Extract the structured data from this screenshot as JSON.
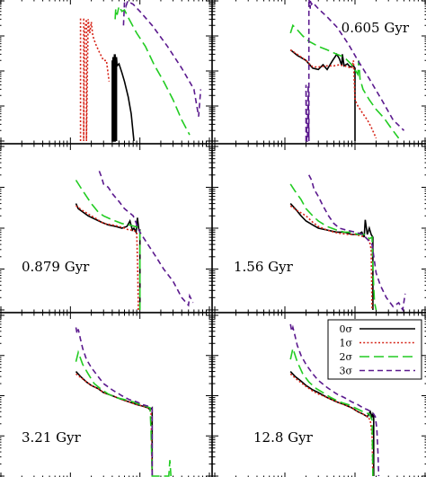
{
  "chart_data": [
    {
      "type": "line",
      "panel_label": "",
      "xscale": "log",
      "yscale": "log",
      "xlim": [
        1,
        1000
      ],
      "ylim": [
        0.0001,
        1
      ],
      "series": [
        {
          "name": "0σ",
          "color": "#000000",
          "dash": "solid",
          "x": [
            40,
            40,
            40,
            41,
            41,
            42,
            42,
            43,
            43,
            44,
            44,
            45,
            45,
            46,
            46,
            47,
            50,
            55,
            60,
            68,
            75,
            82
          ],
          "y": [
            0.0001,
            0.02,
            0.0001,
            0.0001,
            0.025,
            0.0001,
            0.0001,
            0.03,
            0.0001,
            0.0001,
            0.03,
            0.0001,
            0.02,
            0.0001,
            0.025,
            0.014,
            0.016,
            0.009,
            0.005,
            0.0018,
            0.0006,
            0.0001
          ]
        },
        {
          "name": "1σ",
          "color": "#d62418",
          "dash": "dotted",
          "x": [
            14,
            14,
            14.5,
            15.5,
            15.5,
            16,
            17,
            17,
            18,
            19,
            20,
            21,
            23,
            26,
            30,
            33,
            36
          ],
          "y": [
            0.0001,
            0.3,
            0.3,
            0.3,
            0.0001,
            0.15,
            0.3,
            0.0001,
            0.3,
            0.12,
            0.25,
            0.1,
            0.06,
            0.035,
            0.02,
            0.02,
            0.005
          ]
        },
        {
          "name": "2σ",
          "color": "#22cc22",
          "dash": "longdash",
          "x": [
            44,
            45,
            47,
            50,
            55,
            60,
            70,
            90,
            120,
            160,
            220,
            300,
            400,
            520
          ],
          "y": [
            0.3,
            0.6,
            0.4,
            0.7,
            0.5,
            0.55,
            0.3,
            0.12,
            0.05,
            0.015,
            0.005,
            0.0015,
            0.0004,
            0.00015
          ]
        },
        {
          "name": "3σ",
          "color": "#5b1a8e",
          "dash": "dashed",
          "x": [
            58,
            60,
            63,
            67,
            72,
            80,
            100,
            150,
            250,
            400,
            600,
            700,
            750
          ],
          "y": [
            0.2,
            0.9,
            0.7,
            1.0,
            0.9,
            0.8,
            0.5,
            0.2,
            0.05,
            0.012,
            0.003,
            0.0005,
            0.003
          ]
        }
      ]
    },
    {
      "type": "line",
      "panel_label": "0.605 Gyr",
      "xscale": "log",
      "yscale": "log",
      "xlim": [
        1,
        1000
      ],
      "ylim": [
        0.0001,
        1
      ],
      "series": [
        {
          "name": "0σ",
          "color": "#000000",
          "dash": "solid",
          "x": [
            12,
            15,
            20,
            25,
            30,
            35,
            40,
            48,
            55,
            60,
            65,
            66,
            70,
            78,
            85,
            95,
            100,
            100
          ],
          "y": [
            0.04,
            0.028,
            0.02,
            0.012,
            0.011,
            0.015,
            0.011,
            0.02,
            0.03,
            0.022,
            0.014,
            0.03,
            0.014,
            0.016,
            0.013,
            0.014,
            0.012,
            0.0001
          ]
        },
        {
          "name": "1σ",
          "color": "#d62418",
          "dash": "dotted",
          "x": [
            12,
            15,
            20,
            25,
            30,
            40,
            50,
            60,
            70,
            80,
            90,
            95,
            100,
            110,
            130,
            150,
            170,
            200
          ],
          "y": [
            0.04,
            0.03,
            0.02,
            0.013,
            0.013,
            0.014,
            0.014,
            0.015,
            0.014,
            0.013,
            0.012,
            0.02,
            0.0015,
            0.001,
            0.0006,
            0.0004,
            0.00025,
            0.00012
          ]
        },
        {
          "name": "2σ",
          "color": "#22cc22",
          "dash": "longdash",
          "x": [
            12,
            13,
            15,
            18,
            22,
            30,
            40,
            55,
            70,
            90,
            110,
            113,
            118,
            130,
            160,
            200,
            260,
            320,
            420
          ],
          "y": [
            0.12,
            0.2,
            0.15,
            0.1,
            0.07,
            0.05,
            0.04,
            0.03,
            0.025,
            0.015,
            0.008,
            0.02,
            0.006,
            0.003,
            0.0015,
            0.0008,
            0.00045,
            0.00025,
            0.00012
          ]
        },
        {
          "name": "3σ",
          "color": "#5b1a8e",
          "dash": "dashed",
          "x": [
            20,
            20,
            20.5,
            21,
            21.5,
            22,
            22,
            23,
            23,
            24,
            25,
            30,
            40,
            55,
            80,
            110,
            160,
            240,
            350,
            500
          ],
          "y": [
            0.0001,
            0.004,
            0.0001,
            0.0001,
            0.004,
            0.0001,
            1.2,
            0.6,
            1.0,
            0.8,
            0.9,
            0.6,
            0.35,
            0.18,
            0.06,
            0.02,
            0.006,
            0.0015,
            0.0004,
            0.0002
          ]
        }
      ]
    },
    {
      "type": "line",
      "panel_label": "0.879 Gyr",
      "xscale": "log",
      "yscale": "log",
      "xlim": [
        1,
        1000
      ],
      "ylim": [
        0.0001,
        1
      ],
      "series": [
        {
          "name": "0σ",
          "color": "#000000",
          "dash": "solid",
          "x": [
            12,
            13,
            15,
            18,
            22,
            28,
            35,
            45,
            55,
            65,
            72,
            78,
            82,
            88,
            92,
            97,
            100,
            100
          ],
          "y": [
            0.04,
            0.03,
            0.025,
            0.02,
            0.017,
            0.014,
            0.012,
            0.011,
            0.01,
            0.011,
            0.015,
            0.009,
            0.01,
            0.008,
            0.018,
            0.009,
            0.009,
            0.0001
          ]
        },
        {
          "name": "1σ",
          "color": "#d62418",
          "dash": "dotted",
          "x": [
            12,
            15,
            20,
            25,
            30,
            40,
            50,
            60,
            70,
            80,
            90,
            93,
            95
          ],
          "y": [
            0.035,
            0.027,
            0.02,
            0.016,
            0.013,
            0.012,
            0.011,
            0.01,
            0.009,
            0.009,
            0.008,
            0.001,
            0.0001
          ]
        },
        {
          "name": "2σ",
          "color": "#22cc22",
          "dash": "longdash",
          "x": [
            12,
            14,
            17,
            20,
            25,
            30,
            40,
            55,
            70,
            85,
            100,
            100
          ],
          "y": [
            0.15,
            0.1,
            0.06,
            0.04,
            0.025,
            0.02,
            0.016,
            0.013,
            0.012,
            0.011,
            0.01,
            0.0001
          ]
        },
        {
          "name": "3σ",
          "color": "#5b1a8e",
          "dash": "dashed",
          "x": [
            26,
            28,
            30,
            35,
            40,
            50,
            60,
            80,
            100,
            130,
            170,
            220,
            300,
            400,
            500,
            520,
            580
          ],
          "y": [
            0.25,
            0.18,
            0.12,
            0.1,
            0.07,
            0.045,
            0.03,
            0.02,
            0.008,
            0.004,
            0.002,
            0.001,
            0.0005,
            0.0002,
            0.00013,
            0.00022,
            0.00015
          ]
        }
      ]
    },
    {
      "type": "line",
      "panel_label": "1.56 Gyr",
      "xscale": "log",
      "yscale": "log",
      "xlim": [
        1,
        1000
      ],
      "ylim": [
        0.0001,
        1
      ],
      "series": [
        {
          "name": "0σ",
          "color": "#000000",
          "dash": "solid",
          "x": [
            12,
            14,
            17,
            20,
            25,
            30,
            40,
            55,
            70,
            90,
            110,
            125,
            135,
            140,
            150,
            160,
            170,
            180,
            180
          ],
          "y": [
            0.04,
            0.03,
            0.02,
            0.015,
            0.012,
            0.01,
            0.009,
            0.008,
            0.008,
            0.007,
            0.007,
            0.008,
            0.006,
            0.016,
            0.007,
            0.01,
            0.007,
            0.006,
            0.0001
          ]
        },
        {
          "name": "1σ",
          "color": "#d62418",
          "dash": "dotted",
          "x": [
            12,
            15,
            20,
            25,
            30,
            40,
            50,
            60,
            80,
            100,
            120,
            140,
            160,
            170,
            175
          ],
          "y": [
            0.035,
            0.027,
            0.02,
            0.014,
            0.011,
            0.009,
            0.008,
            0.0075,
            0.007,
            0.007,
            0.0065,
            0.006,
            0.005,
            0.003,
            0.0001
          ]
        },
        {
          "name": "2σ",
          "color": "#22cc22",
          "dash": "longdash",
          "x": [
            12,
            14,
            17,
            20,
            25,
            30,
            40,
            55,
            70,
            90,
            110,
            140,
            160,
            175,
            180,
            190,
            200
          ],
          "y": [
            0.12,
            0.08,
            0.05,
            0.03,
            0.02,
            0.015,
            0.011,
            0.009,
            0.008,
            0.008,
            0.007,
            0.007,
            0.0055,
            0.006,
            0.001,
            0.00015,
            0.0001
          ]
        },
        {
          "name": "3σ",
          "color": "#5b1a8e",
          "dash": "dashed",
          "x": [
            22,
            24,
            26,
            30,
            35,
            42,
            50,
            60,
            75,
            100,
            130,
            175,
            200,
            230,
            280,
            350,
            420,
            480,
            520
          ],
          "y": [
            0.2,
            0.15,
            0.09,
            0.06,
            0.035,
            0.02,
            0.013,
            0.01,
            0.009,
            0.008,
            0.007,
            0.004,
            0.0008,
            0.0004,
            0.0002,
            0.00012,
            0.00015,
            0.0001,
            0.00025
          ]
        }
      ]
    },
    {
      "type": "line",
      "panel_label": "3.21 Gyr",
      "xscale": "log",
      "yscale": "log",
      "xlim": [
        1,
        1000
      ],
      "ylim": [
        0.0001,
        1
      ],
      "series": [
        {
          "name": "0σ",
          "color": "#000000",
          "dash": "solid",
          "x": [
            12,
            14,
            17,
            20,
            25,
            30,
            40,
            55,
            70,
            90,
            110,
            130,
            140,
            150,
            150
          ],
          "y": [
            0.04,
            0.03,
            0.022,
            0.018,
            0.015,
            0.012,
            0.01,
            0.008,
            0.007,
            0.006,
            0.0055,
            0.005,
            0.0045,
            0.005,
            0.0001
          ]
        },
        {
          "name": "1σ",
          "color": "#d62418",
          "dash": "dotted",
          "x": [
            12,
            15,
            20,
            25,
            30,
            40,
            55,
            70,
            90,
            110,
            130,
            145,
            150
          ],
          "y": [
            0.035,
            0.026,
            0.018,
            0.015,
            0.012,
            0.01,
            0.008,
            0.007,
            0.006,
            0.0055,
            0.005,
            0.004,
            0.0001
          ]
        },
        {
          "name": "2σ",
          "color": "#22cc22",
          "dash": "longdash",
          "x": [
            12,
            13,
            15,
            18,
            22,
            27,
            35,
            45,
            60,
            80,
            100,
            120,
            140,
            145,
            150,
            260,
            270,
            280
          ],
          "y": [
            0.07,
            0.12,
            0.06,
            0.035,
            0.02,
            0.015,
            0.011,
            0.009,
            0.008,
            0.007,
            0.006,
            0.0055,
            0.005,
            0.0012,
            0.0001,
            0.0001,
            0.00025,
            0.0001
          ]
        },
        {
          "name": "3σ",
          "color": "#5b1a8e",
          "dash": "dashed",
          "x": [
            12,
            12.5,
            13,
            14,
            15,
            17,
            20,
            25,
            30,
            40,
            55,
            70,
            90,
            110,
            130,
            150,
            150
          ],
          "y": [
            0.5,
            0.35,
            0.45,
            0.25,
            0.15,
            0.08,
            0.05,
            0.03,
            0.02,
            0.014,
            0.01,
            0.008,
            0.007,
            0.006,
            0.0055,
            0.005,
            0.0001
          ]
        }
      ]
    },
    {
      "type": "line",
      "panel_label": "12.8 Gyr",
      "xscale": "log",
      "yscale": "log",
      "xlim": [
        1,
        1000
      ],
      "ylim": [
        0.0001,
        1
      ],
      "series": [
        {
          "name": "0σ",
          "color": "#000000",
          "dash": "solid",
          "x": [
            12,
            14,
            17,
            20,
            25,
            30,
            40,
            55,
            70,
            90,
            110,
            130,
            150,
            165,
            175,
            180,
            185,
            185
          ],
          "y": [
            0.04,
            0.03,
            0.023,
            0.018,
            0.014,
            0.012,
            0.009,
            0.007,
            0.006,
            0.005,
            0.004,
            0.0035,
            0.003,
            0.004,
            0.003,
            0.0035,
            0.003,
            0.0001
          ]
        },
        {
          "name": "1σ",
          "color": "#d62418",
          "dash": "dotted",
          "x": [
            12,
            15,
            20,
            25,
            30,
            40,
            55,
            70,
            90,
            110,
            130,
            150,
            165,
            175,
            180
          ],
          "y": [
            0.035,
            0.025,
            0.017,
            0.013,
            0.011,
            0.009,
            0.007,
            0.006,
            0.005,
            0.004,
            0.0035,
            0.003,
            0.0025,
            0.001,
            0.0001
          ]
        },
        {
          "name": "2σ",
          "color": "#22cc22",
          "dash": "longdash",
          "x": [
            12,
            13,
            15,
            18,
            22,
            28,
            35,
            45,
            60,
            80,
            100,
            130,
            160,
            175,
            180
          ],
          "y": [
            0.08,
            0.15,
            0.07,
            0.035,
            0.022,
            0.015,
            0.012,
            0.009,
            0.007,
            0.006,
            0.005,
            0.004,
            0.0035,
            0.0025,
            0.0001
          ]
        },
        {
          "name": "3σ",
          "color": "#5b1a8e",
          "dash": "dashed",
          "x": [
            12,
            12.5,
            13,
            14,
            15,
            17,
            20,
            25,
            30,
            40,
            55,
            70,
            90,
            110,
            130,
            150,
            170,
            185,
            195,
            205,
            212,
            218
          ],
          "y": [
            0.6,
            0.4,
            0.5,
            0.3,
            0.18,
            0.1,
            0.06,
            0.035,
            0.024,
            0.016,
            0.011,
            0.009,
            0.007,
            0.006,
            0.005,
            0.0045,
            0.004,
            0.0035,
            0.003,
            0.0015,
            0.0004,
            0.0001
          ]
        }
      ]
    }
  ],
  "legend": {
    "entries": [
      {
        "label": "0σ",
        "color": "#000000",
        "dash": "solid"
      },
      {
        "label": "1σ",
        "color": "#d62418",
        "dash": "dotted"
      },
      {
        "label": "2σ",
        "color": "#22cc22",
        "dash": "longdash"
      },
      {
        "label": "3σ",
        "color": "#5b1a8e",
        "dash": "dashed"
      }
    ]
  }
}
